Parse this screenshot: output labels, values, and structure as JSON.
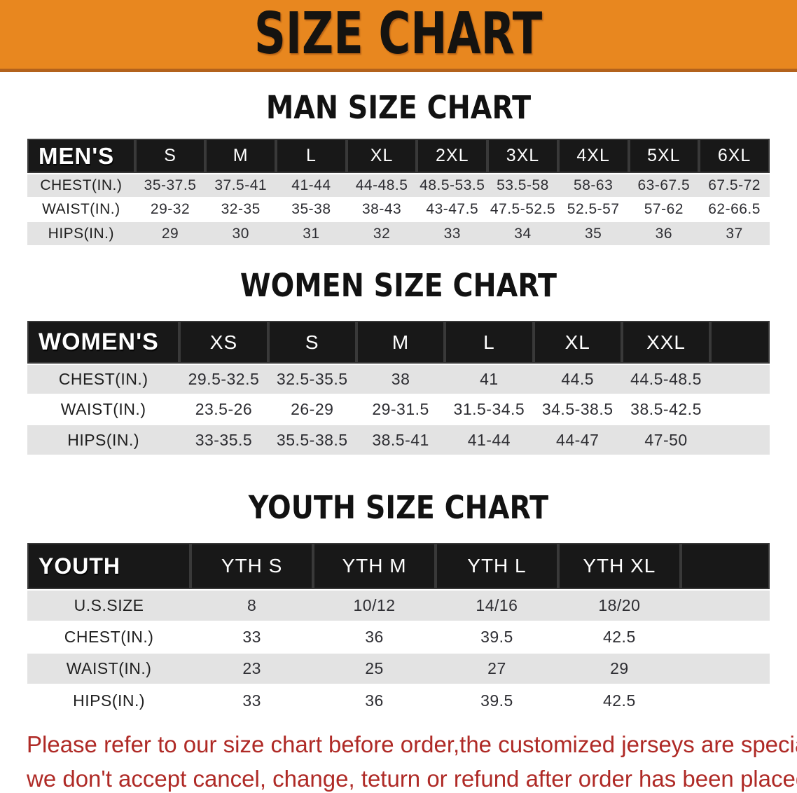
{
  "banner": {
    "title": "SIZE CHART"
  },
  "sections": [
    {
      "heading": "MAN SIZE CHART",
      "table": {
        "header": [
          "MEN'S",
          "S",
          "M",
          "L",
          "XL",
          "2XL",
          "3XL",
          "4XL",
          "5XL",
          "6XL"
        ],
        "rows": [
          [
            "CHEST(IN.)",
            "35-37.5",
            "37.5-41",
            "41-44",
            "44-48.5",
            "48.5-53.5",
            "53.5-58",
            "58-63",
            "63-67.5",
            "67.5-72"
          ],
          [
            "WAIST(IN.)",
            "29-32",
            "32-35",
            "35-38",
            "38-43",
            "43-47.5",
            "47.5-52.5",
            "52.5-57",
            "57-62",
            "62-66.5"
          ],
          [
            "HIPS(IN.)",
            "29",
            "30",
            "31",
            "32",
            "33",
            "34",
            "35",
            "36",
            "37"
          ]
        ]
      }
    },
    {
      "heading": "WOMEN SIZE CHART",
      "table": {
        "header": [
          "WOMEN'S",
          "XS",
          "S",
          "M",
          "L",
          "XL",
          "XXL"
        ],
        "rows": [
          [
            "CHEST(IN.)",
            "29.5-32.5",
            "32.5-35.5",
            "38",
            "41",
            "44.5",
            "44.5-48.5"
          ],
          [
            "WAIST(IN.)",
            "23.5-26",
            "26-29",
            "29-31.5",
            "31.5-34.5",
            "34.5-38.5",
            "38.5-42.5"
          ],
          [
            "HIPS(IN.)",
            "33-35.5",
            "35.5-38.5",
            "38.5-41",
            "41-44",
            "44-47",
            "47-50"
          ]
        ]
      }
    },
    {
      "heading": "YOUTH SIZE CHART",
      "table": {
        "header": [
          "YOUTH",
          "YTH S",
          "YTH M",
          "YTH L",
          "YTH XL"
        ],
        "rows": [
          [
            "U.S.SIZE",
            "8",
            "10/12",
            "14/16",
            "18/20"
          ],
          [
            "CHEST(IN.)",
            "33",
            "36",
            "39.5",
            "42.5"
          ],
          [
            "WAIST(IN.)",
            "23",
            "25",
            "27",
            "29"
          ],
          [
            "HIPS(IN.)",
            "33",
            "36",
            "39.5",
            "42.5"
          ]
        ]
      }
    }
  ],
  "footer_note": {
    "line1": "Please refer to our size chart before order,the customized jerseys are special products,",
    "line2": "we don't accept cancel, change, teturn or refund after order has been placed!"
  },
  "colors": {
    "banner_bg": "#E8871F",
    "banner_edge": "#B3621C",
    "header_bar": "#181818",
    "row_gray": "#E3E3E3",
    "notice_red": "#AF2A26"
  }
}
